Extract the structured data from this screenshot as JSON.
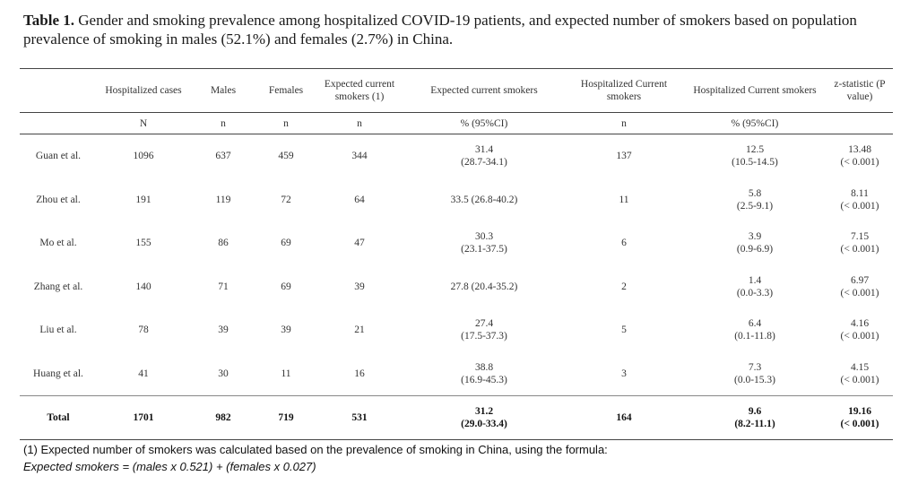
{
  "caption": {
    "label": "Table 1.",
    "text": " Gender and smoking prevalence among hospitalized COVID-19 patients, and expected number of smokers based on population prevalence of smoking in males (52.1%) and females (2.7%) in China."
  },
  "table": {
    "headers": [
      "",
      "Hospitalized cases",
      "Males",
      "Females",
      "Expected current smokers (1)",
      "Expected current smokers",
      "Hospitalized Current smokers",
      "Hospitalized Current smokers",
      "z-statistic (P value)"
    ],
    "units": [
      "",
      "N",
      "n",
      "n",
      "n",
      "% (95%CI)",
      "n",
      "% (95%CI)",
      ""
    ],
    "rows": [
      {
        "study": "Guan et al.",
        "cases": "1096",
        "males": "637",
        "females": "459",
        "expected_n": "344",
        "expected_pct": "31.4",
        "expected_ci": "(28.7-34.1)",
        "hosp_n": "137",
        "hosp_pct": "12.5",
        "hosp_ci": "(10.5-14.5)",
        "z": "13.48",
        "p": "(< 0.001)"
      },
      {
        "study": "Zhou et al.",
        "cases": "191",
        "males": "119",
        "females": "72",
        "expected_n": "64",
        "expected_pct": "33.5 (26.8-40.2)",
        "expected_ci": "",
        "hosp_n": "11",
        "hosp_pct": "5.8",
        "hosp_ci": "(2.5-9.1)",
        "z": "8.11",
        "p": "(< 0.001)"
      },
      {
        "study": "Mo et al.",
        "cases": "155",
        "males": "86",
        "females": "69",
        "expected_n": "47",
        "expected_pct": "30.3",
        "expected_ci": "(23.1-37.5)",
        "hosp_n": "6",
        "hosp_pct": "3.9",
        "hosp_ci": "(0.9-6.9)",
        "z": "7.15",
        "p": "(< 0.001)"
      },
      {
        "study": "Zhang et al.",
        "cases": "140",
        "males": "71",
        "females": "69",
        "expected_n": "39",
        "expected_pct": "27.8 (20.4-35.2)",
        "expected_ci": "",
        "hosp_n": "2",
        "hosp_pct": "1.4",
        "hosp_ci": "(0.0-3.3)",
        "z": "6.97",
        "p": "(< 0.001)"
      },
      {
        "study": "Liu et al.",
        "cases": "78",
        "males": "39",
        "females": "39",
        "expected_n": "21",
        "expected_pct": "27.4",
        "expected_ci": "(17.5-37.3)",
        "hosp_n": "5",
        "hosp_pct": "6.4",
        "hosp_ci": "(0.1-11.8)",
        "z": "4.16",
        "p": "(< 0.001)"
      },
      {
        "study": "Huang et al.",
        "cases": "41",
        "males": "30",
        "females": "11",
        "expected_n": "16",
        "expected_pct": "38.8",
        "expected_ci": "(16.9-45.3)",
        "hosp_n": "3",
        "hosp_pct": "7.3",
        "hosp_ci": "(0.0-15.3)",
        "z": "4.15",
        "p": "(< 0.001)"
      }
    ],
    "total": {
      "study": "Total",
      "cases": "1701",
      "males": "982",
      "females": "719",
      "expected_n": "531",
      "expected_pct": "31.2",
      "expected_ci": "(29.0-33.4)",
      "hosp_n": "164",
      "hosp_pct": "9.6",
      "hosp_ci": "(8.2-11.1)",
      "z": "19.16",
      "p": "(< 0.001)"
    }
  },
  "footnote": {
    "line1": "(1) Expected number of smokers was calculated based on the prevalence of smoking in China, using the formula:",
    "formula": "Expected smokers = (males x 0.521) + (females x 0.027)"
  }
}
